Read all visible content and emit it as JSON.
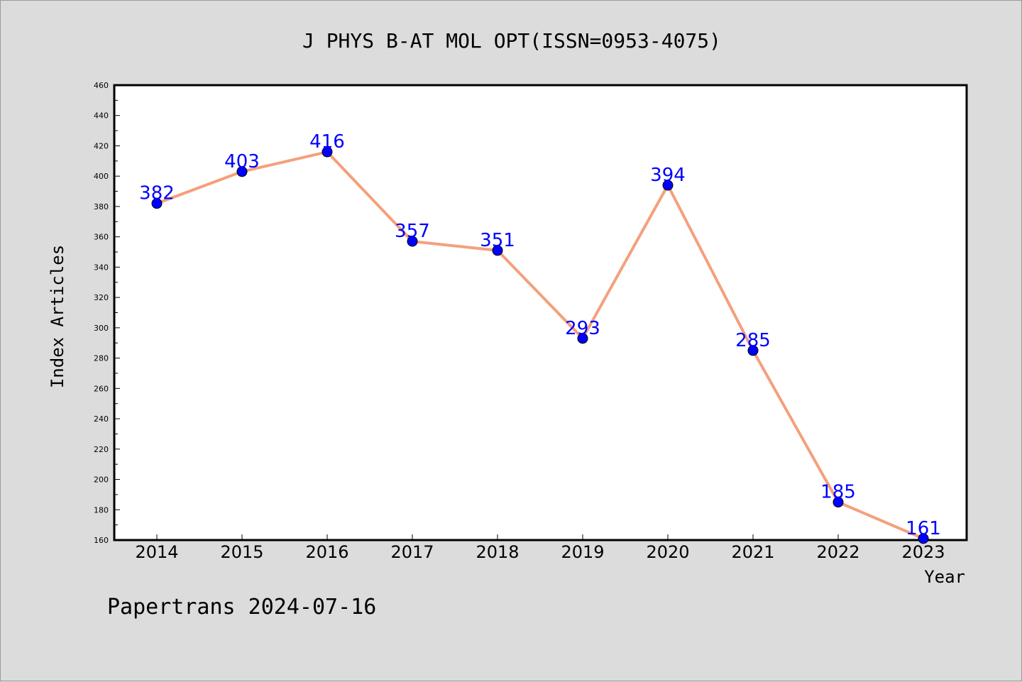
{
  "chart_data": {
    "type": "line",
    "title": "J PHYS B-AT MOL OPT(ISSN=0953-4075)",
    "xlabel": "Year",
    "ylabel": "Index Articles",
    "footer": "Papertrans 2024-07-16",
    "categories": [
      "2014",
      "2015",
      "2016",
      "2017",
      "2018",
      "2019",
      "2020",
      "2021",
      "2022",
      "2023"
    ],
    "values": [
      382,
      403,
      416,
      357,
      351,
      293,
      394,
      285,
      185,
      161
    ],
    "ylim": [
      160,
      460
    ],
    "yticks": [
      160,
      180,
      200,
      220,
      240,
      260,
      280,
      300,
      320,
      340,
      360,
      380,
      400,
      420,
      440,
      460
    ],
    "grid": false,
    "line_color": "#f4a07c",
    "marker_color": "#0000ff",
    "label_color": "#0000ff"
  }
}
